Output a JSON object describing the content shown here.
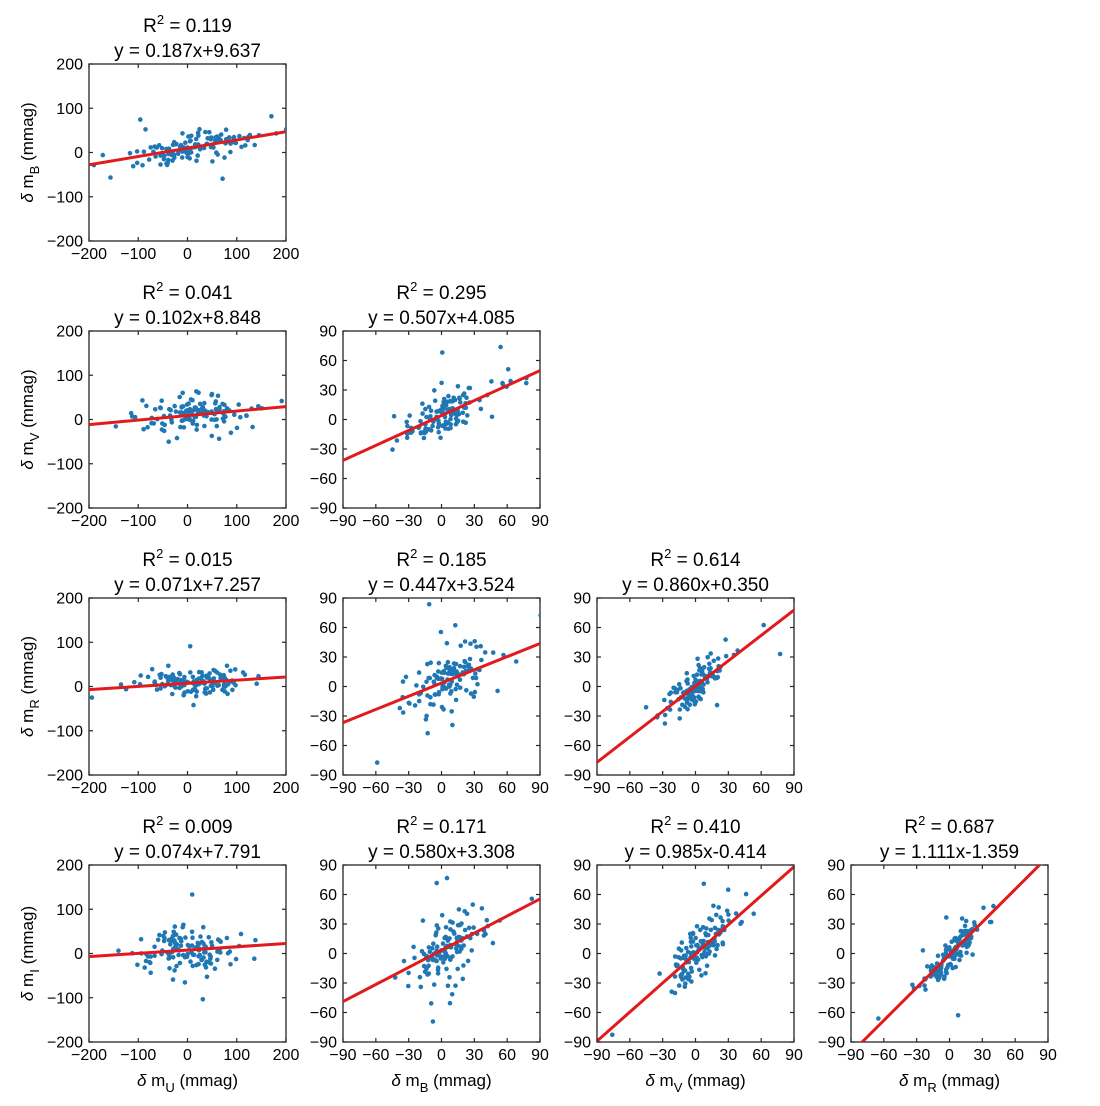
{
  "chart_data": [
    {
      "id": "B_vs_U",
      "type": "scatter",
      "xvar": "U",
      "yvar": "B",
      "r2_text": "0.119",
      "eq_text": "y = 0.187x+9.637",
      "slope": 0.187,
      "intercept": 9.637,
      "xlim": [
        -200,
        200
      ],
      "ylim": [
        -200,
        200
      ],
      "xticks": [
        -200,
        -100,
        0,
        100,
        200
      ],
      "yticks": [
        -200,
        -100,
        0,
        100,
        200
      ],
      "ylabel": {
        "prefix": "δ m",
        "sub": "B",
        "suffix": " (mmag)"
      },
      "xlabel": null,
      "n_points": 130,
      "seed": 11,
      "sx": 55,
      "sy": 20,
      "noise": 16
    },
    {
      "id": "V_vs_U",
      "type": "scatter",
      "xvar": "U",
      "yvar": "V",
      "r2_text": "0.041",
      "eq_text": "y = 0.102x+8.848",
      "slope": 0.102,
      "intercept": 8.848,
      "xlim": [
        -200,
        200
      ],
      "ylim": [
        -200,
        200
      ],
      "xticks": [
        -200,
        -100,
        0,
        100,
        200
      ],
      "yticks": [
        -200,
        -100,
        0,
        100,
        200
      ],
      "ylabel": {
        "prefix": "δ m",
        "sub": "V",
        "suffix": " (mmag)"
      },
      "xlabel": null,
      "n_points": 130,
      "seed": 23,
      "sx": 55,
      "sy": 15,
      "noise": 18
    },
    {
      "id": "V_vs_B",
      "type": "scatter",
      "xvar": "B",
      "yvar": "V",
      "r2_text": "0.295",
      "eq_text": "y = 0.507x+4.085",
      "slope": 0.507,
      "intercept": 4.085,
      "xlim": [
        -90,
        90
      ],
      "ylim": [
        -90,
        90
      ],
      "xticks": [
        -90,
        -60,
        -30,
        0,
        30,
        60,
        90
      ],
      "yticks": [
        -90,
        -60,
        -30,
        0,
        30,
        60,
        90
      ],
      "ylabel": null,
      "xlabel": null,
      "n_points": 130,
      "seed": 37,
      "sx": 18,
      "sy": 14,
      "noise": 12
    },
    {
      "id": "R_vs_U",
      "type": "scatter",
      "xvar": "U",
      "yvar": "R",
      "r2_text": "0.015",
      "eq_text": "y = 0.071x+7.257",
      "slope": 0.071,
      "intercept": 7.257,
      "xlim": [
        -200,
        200
      ],
      "ylim": [
        -200,
        200
      ],
      "xticks": [
        -200,
        -100,
        0,
        100,
        200
      ],
      "yticks": [
        -200,
        -100,
        0,
        100,
        200
      ],
      "ylabel": {
        "prefix": "δ m",
        "sub": "R",
        "suffix": " (mmag)"
      },
      "xlabel": null,
      "n_points": 130,
      "seed": 41,
      "sx": 55,
      "sy": 14,
      "noise": 16
    },
    {
      "id": "R_vs_B",
      "type": "scatter",
      "xvar": "B",
      "yvar": "R",
      "r2_text": "0.185",
      "eq_text": "y = 0.447x+3.524",
      "slope": 0.447,
      "intercept": 3.524,
      "xlim": [
        -90,
        90
      ],
      "ylim": [
        -90,
        90
      ],
      "xticks": [
        -90,
        -60,
        -30,
        0,
        30,
        60,
        90
      ],
      "yticks": [
        -90,
        -60,
        -30,
        0,
        30,
        60,
        90
      ],
      "ylabel": null,
      "xlabel": null,
      "n_points": 130,
      "seed": 53,
      "sx": 18,
      "sy": 13,
      "noise": 14
    },
    {
      "id": "R_vs_V",
      "type": "scatter",
      "xvar": "V",
      "yvar": "R",
      "r2_text": "0.614",
      "eq_text": "y = 0.860x+0.350",
      "slope": 0.86,
      "intercept": 0.35,
      "xlim": [
        -90,
        90
      ],
      "ylim": [
        -90,
        90
      ],
      "xticks": [
        -90,
        -60,
        -30,
        0,
        30,
        60,
        90
      ],
      "yticks": [
        -90,
        -60,
        -30,
        0,
        30,
        60,
        90
      ],
      "ylabel": null,
      "xlabel": null,
      "n_points": 130,
      "seed": 67,
      "sx": 14,
      "sy": 10,
      "noise": 8
    },
    {
      "id": "I_vs_U",
      "type": "scatter",
      "xvar": "U",
      "yvar": "I",
      "r2_text": "0.009",
      "eq_text": "y = 0.074x+7.791",
      "slope": 0.074,
      "intercept": 7.791,
      "xlim": [
        -200,
        200
      ],
      "ylim": [
        -200,
        200
      ],
      "xticks": [
        -200,
        -100,
        0,
        100,
        200
      ],
      "yticks": [
        -200,
        -100,
        0,
        100,
        200
      ],
      "ylabel": {
        "prefix": "δ m",
        "sub": "I",
        "suffix": " (mmag)"
      },
      "xlabel": {
        "prefix": "δ m",
        "sub": "U",
        "suffix": " (mmag)"
      },
      "n_points": 130,
      "seed": 71,
      "sx": 55,
      "sy": 20,
      "noise": 22
    },
    {
      "id": "I_vs_B",
      "type": "scatter",
      "xvar": "B",
      "yvar": "I",
      "r2_text": "0.171",
      "eq_text": "y = 0.580x+3.308",
      "slope": 0.58,
      "intercept": 3.308,
      "xlim": [
        -90,
        90
      ],
      "ylim": [
        -90,
        90
      ],
      "xticks": [
        -90,
        -60,
        -30,
        0,
        30,
        60,
        90
      ],
      "yticks": [
        -90,
        -60,
        -30,
        0,
        30,
        60,
        90
      ],
      "ylabel": null,
      "xlabel": {
        "prefix": "δ m",
        "sub": "B",
        "suffix": " (mmag)"
      },
      "n_points": 130,
      "seed": 83,
      "sx": 18,
      "sy": 13,
      "noise": 16
    },
    {
      "id": "I_vs_V",
      "type": "scatter",
      "xvar": "V",
      "yvar": "I",
      "r2_text": "0.410",
      "eq_text": "y = 0.985x-0.414",
      "slope": 0.985,
      "intercept": -0.414,
      "xlim": [
        -90,
        90
      ],
      "ylim": [
        -90,
        90
      ],
      "xticks": [
        -90,
        -60,
        -30,
        0,
        30,
        60,
        90
      ],
      "yticks": [
        -90,
        -60,
        -30,
        0,
        30,
        60,
        90
      ],
      "ylabel": null,
      "xlabel": {
        "prefix": "δ m",
        "sub": "V",
        "suffix": " (mmag)"
      },
      "n_points": 130,
      "seed": 97,
      "sx": 14,
      "sy": 10,
      "noise": 14
    },
    {
      "id": "I_vs_R",
      "type": "scatter",
      "xvar": "R",
      "yvar": "I",
      "r2_text": "0.687",
      "eq_text": "y = 1.111x-1.359",
      "slope": 1.111,
      "intercept": -1.359,
      "xlim": [
        -90,
        90
      ],
      "ylim": [
        -90,
        90
      ],
      "xticks": [
        -90,
        -60,
        -30,
        0,
        30,
        60,
        90
      ],
      "yticks": [
        -90,
        -60,
        -30,
        0,
        30,
        60,
        90
      ],
      "ylabel": null,
      "xlabel": {
        "prefix": "δ m",
        "sub": "R",
        "suffix": " (mmag)"
      },
      "n_points": 130,
      "seed": 101,
      "sx": 13,
      "sy": 10,
      "noise": 9
    }
  ],
  "r2_prefix": "R",
  "r2_exp": "2",
  "r2_eq": " = "
}
